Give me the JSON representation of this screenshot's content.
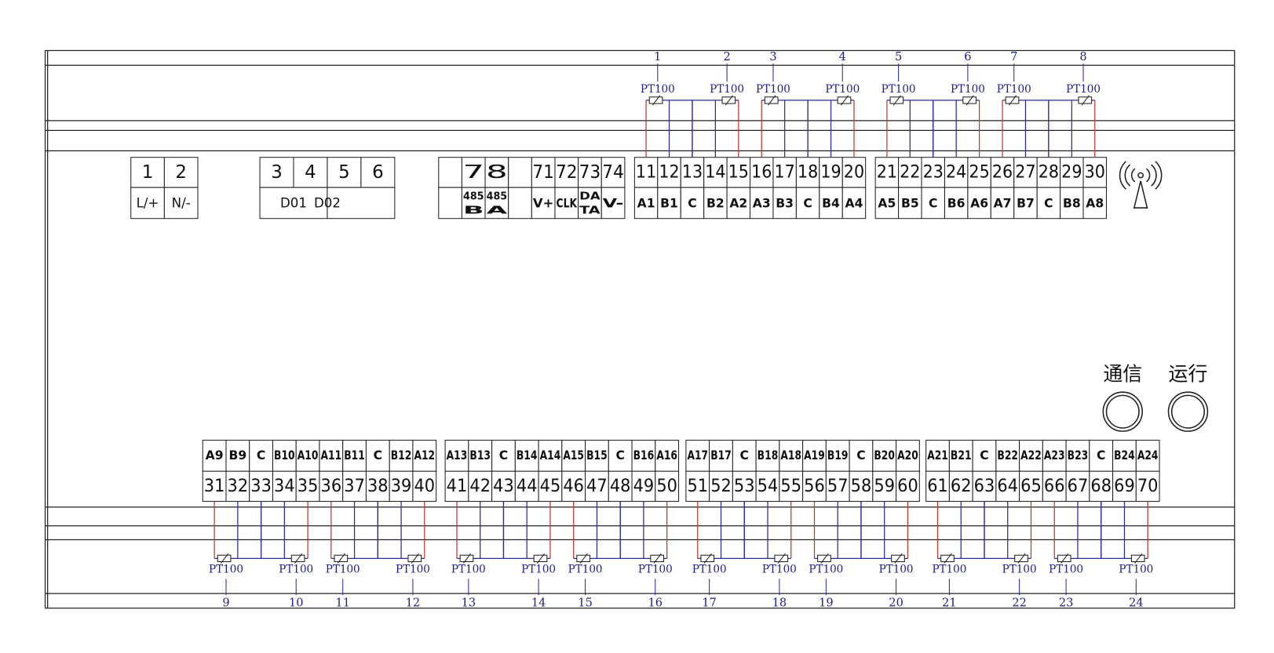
{
  "power": {
    "numbers": [
      1,
      2
    ],
    "labels": [
      "L/+",
      "N/-"
    ]
  },
  "outputs": {
    "numbers": [
      3,
      4,
      5,
      6
    ],
    "labels": [
      "D01",
      "D02"
    ]
  },
  "comm": {
    "numbers": [
      7,
      8,
      71,
      72,
      73,
      74
    ],
    "labels": [
      [
        "485",
        "B"
      ],
      [
        "485",
        "A"
      ],
      [
        "V+"
      ],
      [
        "CLK"
      ],
      [
        "DA",
        "TA"
      ],
      [
        "V-"
      ]
    ]
  },
  "top_terminals": {
    "numbers": [
      11,
      12,
      13,
      14,
      15,
      16,
      17,
      18,
      19,
      20,
      21,
      22,
      23,
      24,
      25,
      26,
      27,
      28,
      29,
      30
    ],
    "labels": [
      "A1",
      "B1",
      "C",
      "B2",
      "A2",
      "A3",
      "B3",
      "C",
      "B4",
      "A4",
      "A5",
      "B5",
      "C",
      "B6",
      "A6",
      "A7",
      "B7",
      "C",
      "B8",
      "A8"
    ]
  },
  "top_sensors": [
    {
      "number": 1,
      "type": "PT100"
    },
    {
      "number": 2,
      "type": "PT100"
    },
    {
      "number": 3,
      "type": "PT100"
    },
    {
      "number": 4,
      "type": "PT100"
    },
    {
      "number": 5,
      "type": "PT100"
    },
    {
      "number": 6,
      "type": "PT100"
    },
    {
      "number": 7,
      "type": "PT100"
    },
    {
      "number": 8,
      "type": "PT100"
    }
  ],
  "bottom_terminals": {
    "labels": [
      "A9",
      "B9",
      "C",
      "B10",
      "A10",
      "A11",
      "B11",
      "C",
      "B12",
      "A12",
      "A13",
      "B13",
      "C",
      "B14",
      "A14",
      "A15",
      "B15",
      "C",
      "B16",
      "A16",
      "A17",
      "B17",
      "C",
      "B18",
      "A18",
      "A19",
      "B19",
      "C",
      "B20",
      "A20",
      "A21",
      "B21",
      "C",
      "B22",
      "A22",
      "A23",
      "B23",
      "C",
      "B24",
      "A24"
    ],
    "numbers": [
      31,
      32,
      33,
      34,
      35,
      36,
      37,
      38,
      39,
      40,
      41,
      42,
      43,
      44,
      45,
      46,
      47,
      48,
      49,
      50,
      51,
      52,
      53,
      54,
      55,
      56,
      57,
      58,
      59,
      60,
      61,
      62,
      63,
      64,
      65,
      66,
      67,
      68,
      69,
      70
    ]
  },
  "bottom_sensors": [
    {
      "number": 9,
      "type": "PT100"
    },
    {
      "number": 10,
      "type": "PT100"
    },
    {
      "number": 11,
      "type": "PT100"
    },
    {
      "number": 12,
      "type": "PT100"
    },
    {
      "number": 13,
      "type": "PT100"
    },
    {
      "number": 14,
      "type": "PT100"
    },
    {
      "number": 15,
      "type": "PT100"
    },
    {
      "number": 16,
      "type": "PT100"
    },
    {
      "number": 17,
      "type": "PT100"
    },
    {
      "number": 18,
      "type": "PT100"
    },
    {
      "number": 19,
      "type": "PT100"
    },
    {
      "number": 20,
      "type": "PT100"
    },
    {
      "number": 21,
      "type": "PT100"
    },
    {
      "number": 22,
      "type": "PT100"
    },
    {
      "number": 23,
      "type": "PT100"
    },
    {
      "number": 24,
      "type": "PT100"
    }
  ],
  "indicators": [
    "通信",
    "运行"
  ]
}
